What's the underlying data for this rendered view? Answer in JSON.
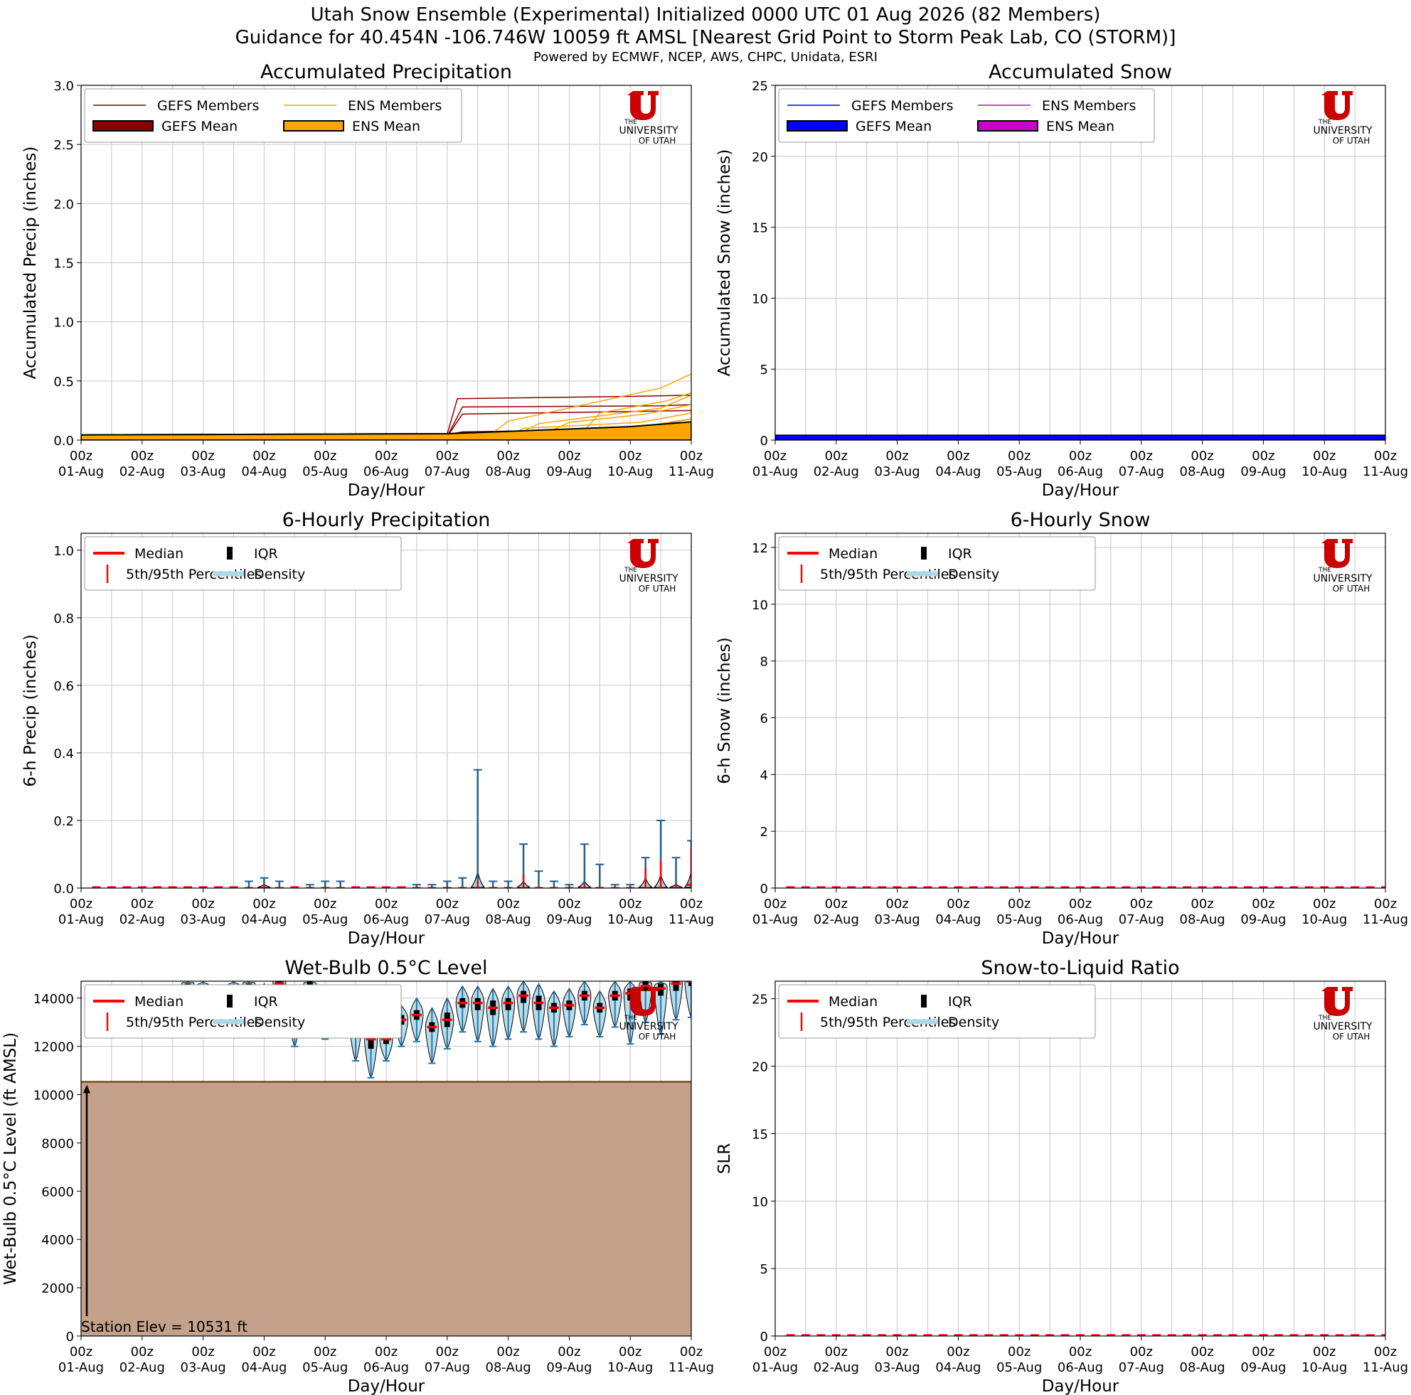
{
  "figure": {
    "title_line1": "Utah Snow Ensemble (Experimental) Initialized 0000 UTC 01 Aug 2026 (82 Members)",
    "title_line2": "Guidance for 40.454N -106.746W 10059 ft AMSL [Nearest Grid Point to Storm Peak Lab, CO (STORM)]",
    "credits": "Powered by ECMWF, NCEP, AWS, CHPC, Unidata, ESRI"
  },
  "logo": {
    "line1": "THE",
    "line2": "UNIVERSITY",
    "line3": "OF UTAH",
    "color": "#cc0000"
  },
  "colors": {
    "gefs_member": "#8b0000",
    "gefs_mean": "#8b0000",
    "ens_member": "#ffa500",
    "ens_mean": "#ffa500",
    "gefs_snow_member": "#0000ff",
    "gefs_snow_mean": "#0000ff",
    "ens_snow_member": "#cc00cc",
    "ens_snow_mean": "#cc00cc",
    "median": "#ff0000",
    "iqr": "#000000",
    "density": "#add8e6",
    "violin_edge": "#1f5f8f",
    "whisker": "#1f77b4",
    "terrain": "#c4a18a",
    "terrain_edge": "#7a4a1a"
  },
  "chart_data": [
    {
      "id": "accum-precip",
      "type": "line",
      "title": "Accumulated Precipitation",
      "xlabel": "Day/Hour",
      "ylabel": "Accumulated Precip (inches)",
      "ylim": [
        0,
        3.0
      ],
      "yticks": [
        "0.0",
        "0.5",
        "1.0",
        "1.5",
        "2.0",
        "2.5",
        "3.0"
      ],
      "xlim": [
        0,
        240
      ],
      "xtick_hour": "00z",
      "xtick_days": [
        "01-Aug",
        "02-Aug",
        "03-Aug",
        "04-Aug",
        "05-Aug",
        "06-Aug",
        "07-Aug",
        "08-Aug",
        "09-Aug",
        "10-Aug",
        "11-Aug"
      ],
      "grid": true,
      "legend_placement": "top-left",
      "legend_cols": 2,
      "legend": [
        "GEFS Members",
        "GEFS Mean",
        "ENS Members",
        "ENS Mean"
      ],
      "series": [
        {
          "group": "gefs_member",
          "x": [
            0,
            61,
            64,
            144,
            148,
            216,
            240
          ],
          "y": [
            0.02,
            0.02,
            0.04,
            0.05,
            0.35,
            0.37,
            0.38
          ]
        },
        {
          "group": "gefs_member",
          "x": [
            0,
            144,
            150,
            228,
            240
          ],
          "y": [
            0.02,
            0.03,
            0.28,
            0.29,
            0.3
          ]
        },
        {
          "group": "gefs_member",
          "x": [
            0,
            144,
            150,
            210,
            240
          ],
          "y": [
            0.02,
            0.03,
            0.22,
            0.24,
            0.25
          ]
        },
        {
          "group": "gefs_member",
          "x": [
            0,
            140,
            150,
            216,
            240
          ],
          "y": [
            0.02,
            0.03,
            0.07,
            0.09,
            0.18
          ]
        },
        {
          "group": "gefs_member",
          "x": [
            0,
            150,
            220,
            240
          ],
          "y": [
            0.02,
            0.04,
            0.07,
            0.15
          ]
        },
        {
          "group": "ens_member",
          "x": [
            0,
            160,
            168,
            228,
            240
          ],
          "y": [
            0.02,
            0.03,
            0.16,
            0.44,
            0.56
          ]
        },
        {
          "group": "ens_member",
          "x": [
            0,
            196,
            204,
            230,
            240
          ],
          "y": [
            0.02,
            0.03,
            0.23,
            0.33,
            0.4
          ]
        },
        {
          "group": "ens_member",
          "x": [
            0,
            170,
            180,
            228,
            240
          ],
          "y": [
            0.02,
            0.03,
            0.14,
            0.27,
            0.38
          ]
        },
        {
          "group": "ens_member",
          "x": [
            0,
            180,
            192,
            222,
            240
          ],
          "y": [
            0.02,
            0.03,
            0.15,
            0.22,
            0.3
          ]
        },
        {
          "group": "ens_member",
          "x": [
            0,
            168,
            174,
            220,
            240
          ],
          "y": [
            0.02,
            0.03,
            0.1,
            0.15,
            0.23
          ]
        },
        {
          "group": "ens_member",
          "x": [
            0,
            200,
            216,
            240
          ],
          "y": [
            0.02,
            0.03,
            0.1,
            0.18
          ]
        },
        {
          "group": "gefs_mean",
          "x": [
            0,
            144,
            168,
            216,
            240
          ],
          "y": [
            0.02,
            0.03,
            0.05,
            0.07,
            0.09
          ]
        },
        {
          "group": "ens_mean",
          "x": [
            0,
            144,
            168,
            216,
            240
          ],
          "y": [
            0.02,
            0.03,
            0.05,
            0.09,
            0.13
          ]
        }
      ]
    },
    {
      "id": "accum-snow",
      "type": "line",
      "title": "Accumulated Snow",
      "xlabel": "Day/Hour",
      "ylabel": "Accumulated Snow (inches)",
      "ylim": [
        0,
        25
      ],
      "yticks": [
        "0",
        "5",
        "10",
        "15",
        "20",
        "25"
      ],
      "xlim": [
        0,
        240
      ],
      "xtick_hour": "00z",
      "xtick_days": [
        "01-Aug",
        "02-Aug",
        "03-Aug",
        "04-Aug",
        "05-Aug",
        "06-Aug",
        "07-Aug",
        "08-Aug",
        "09-Aug",
        "10-Aug",
        "11-Aug"
      ],
      "grid": true,
      "legend_placement": "top-left",
      "legend_cols": 2,
      "legend": [
        "GEFS Members",
        "GEFS Mean",
        "ENS Members",
        "ENS Mean"
      ],
      "series": [
        {
          "group": "gefs_snow_mean",
          "x": [
            0,
            240
          ],
          "y": [
            0.1,
            0.1
          ]
        }
      ]
    },
    {
      "id": "precip-6h",
      "type": "violin",
      "title": "6-Hourly Precipitation",
      "xlabel": "Day/Hour",
      "ylabel": "6-h Precip (inches)",
      "ylim": [
        0,
        1.05
      ],
      "yticks": [
        "0.0",
        "0.2",
        "0.4",
        "0.6",
        "0.8",
        "1.0"
      ],
      "xlim": [
        0,
        240
      ],
      "xtick_hour": "00z",
      "xtick_days": [
        "01-Aug",
        "02-Aug",
        "03-Aug",
        "04-Aug",
        "05-Aug",
        "06-Aug",
        "07-Aug",
        "08-Aug",
        "09-Aug",
        "10-Aug",
        "11-Aug"
      ],
      "grid": true,
      "legend_placement": "top-left",
      "legend_cols": 2,
      "legend": [
        "Median",
        "5th/95th Percentiles",
        "IQR",
        "Density"
      ],
      "x": [
        66,
        72,
        78,
        90,
        96,
        102,
        132,
        138,
        144,
        150,
        156,
        162,
        168,
        174,
        180,
        186,
        192,
        198,
        204,
        210,
        216,
        222,
        228,
        234,
        240
      ],
      "max": [
        0.02,
        0.03,
        0.02,
        0.01,
        0.02,
        0.02,
        0.01,
        0.01,
        0.02,
        0.03,
        0.35,
        0.02,
        0.02,
        0.13,
        0.05,
        0.02,
        0.01,
        0.13,
        0.07,
        0.01,
        0.01,
        0.09,
        0.2,
        0.09,
        0.14
      ],
      "p95": [
        0.0,
        0.01,
        0.0,
        0.0,
        0.0,
        0.0,
        0.0,
        0.0,
        0.0,
        0.0,
        0.02,
        0.0,
        0.0,
        0.04,
        0.0,
        0.0,
        0.0,
        0.01,
        0.0,
        0.0,
        0.0,
        0.06,
        0.08,
        0.01,
        0.12
      ],
      "median": [
        0.0,
        0.0,
        0.0,
        0.0,
        0.0,
        0.0,
        0.0,
        0.0,
        0.0,
        0.0,
        0.0,
        0.0,
        0.0,
        0.0,
        0.0,
        0.0,
        0.0,
        0.0,
        0.0,
        0.0,
        0.0,
        0.0,
        0.0,
        0.0,
        0.01
      ],
      "bump": [
        0.0,
        0.01,
        0.0,
        0.0,
        0.0,
        0.0,
        0.0,
        0.0,
        0.0,
        0.0,
        0.05,
        0.0,
        0.0,
        0.02,
        0.0,
        0.0,
        0.0,
        0.02,
        0.0,
        0.0,
        0.0,
        0.03,
        0.04,
        0.01,
        0.05
      ],
      "baseline_x": [
        6,
        12,
        18,
        24,
        30,
        36,
        42,
        48,
        54,
        60,
        84,
        108,
        114,
        120,
        126
      ]
    },
    {
      "id": "snow-6h",
      "type": "violin",
      "title": "6-Hourly Snow",
      "xlabel": "Day/Hour",
      "ylabel": "6-h Snow (inches)",
      "ylim": [
        0,
        12.5
      ],
      "yticks": [
        "0",
        "2",
        "4",
        "6",
        "8",
        "10",
        "12"
      ],
      "xlim": [
        0,
        240
      ],
      "xtick_hour": "00z",
      "xtick_days": [
        "01-Aug",
        "02-Aug",
        "03-Aug",
        "04-Aug",
        "05-Aug",
        "06-Aug",
        "07-Aug",
        "08-Aug",
        "09-Aug",
        "10-Aug",
        "11-Aug"
      ],
      "grid": true,
      "legend_placement": "top-left",
      "legend_cols": 2,
      "legend": [
        "Median",
        "5th/95th Percentiles",
        "IQR",
        "Density"
      ],
      "baseline_every": 6
    },
    {
      "id": "wetbulb",
      "type": "violin",
      "title": "Wet-Bulb 0.5°C Level",
      "xlabel": "Day/Hour",
      "ylabel": "Wet-Bulb 0.5°C Level (ft AMSL)",
      "ylim": [
        0,
        14700
      ],
      "yticks": [
        "0",
        "2000",
        "4000",
        "6000",
        "8000",
        "10000",
        "12000",
        "14000"
      ],
      "xlim": [
        0,
        240
      ],
      "xtick_hour": "00z",
      "xtick_days": [
        "01-Aug",
        "02-Aug",
        "03-Aug",
        "04-Aug",
        "05-Aug",
        "06-Aug",
        "07-Aug",
        "08-Aug",
        "09-Aug",
        "10-Aug",
        "11-Aug"
      ],
      "grid": true,
      "legend_placement": "top-left",
      "legend_cols": 2,
      "legend": [
        "Median",
        "5th/95th Percentiles",
        "IQR",
        "Density"
      ],
      "station_elev_ft": 10531,
      "station_label": "Station Elev = 10531 ft",
      "x": [
        6,
        12,
        18,
        24,
        30,
        36,
        42,
        48,
        54,
        60,
        66,
        72,
        78,
        84,
        90,
        96,
        102,
        108,
        114,
        120,
        126,
        132,
        138,
        144,
        150,
        156,
        162,
        168,
        174,
        180,
        186,
        192,
        198,
        204,
        210,
        216,
        222,
        228,
        234,
        240
      ],
      "median": [
        13600,
        13700,
        14000,
        13900,
        14200,
        14000,
        14500,
        14400,
        14200,
        14400,
        14500,
        14300,
        14600,
        13500,
        14500,
        13000,
        13800,
        13000,
        12300,
        12300,
        13100,
        13300,
        12800,
        13100,
        13800,
        13800,
        13600,
        13800,
        14100,
        13800,
        13600,
        13700,
        14100,
        13600,
        14100,
        14200,
        14500,
        14400,
        14600,
        14700
      ],
      "q1": [
        13500,
        13600,
        13900,
        13800,
        14100,
        13900,
        14400,
        14300,
        14100,
        14300,
        14400,
        14200,
        14500,
        13300,
        14300,
        12800,
        13600,
        12800,
        11900,
        12100,
        12900,
        13100,
        12600,
        12800,
        13600,
        13500,
        13300,
        13500,
        13800,
        13500,
        13400,
        13500,
        13900,
        13400,
        13900,
        13900,
        14300,
        14100,
        14300,
        14500
      ],
      "q3": [
        13700,
        13800,
        14100,
        14000,
        14300,
        14100,
        14600,
        14500,
        14300,
        14500,
        14600,
        14400,
        14700,
        13700,
        14700,
        13200,
        14000,
        13200,
        12600,
        12500,
        13300,
        13500,
        13000,
        13400,
        14000,
        14000,
        13900,
        14000,
        14300,
        14100,
        13800,
        13900,
        14300,
        13800,
        14300,
        14400,
        14700,
        14600,
        14700,
        14700
      ],
      "p05": [
        13300,
        13300,
        13500,
        13400,
        13700,
        13500,
        14000,
        14000,
        13800,
        14000,
        14000,
        13900,
        14100,
        12000,
        13800,
        12300,
        13200,
        11400,
        10700,
        11400,
        12000,
        12200,
        11300,
        11900,
        12600,
        12200,
        12000,
        12300,
        12600,
        12300,
        12000,
        12400,
        12900,
        12400,
        12800,
        12100,
        13000,
        12500,
        13100,
        13200
      ],
      "p95": [
        13900,
        14000,
        14300,
        14200,
        14500,
        14300,
        14700,
        14700,
        14500,
        14700,
        14700,
        14600,
        14700,
        14100,
        14700,
        13700,
        14400,
        13700,
        13200,
        13000,
        13700,
        14000,
        13600,
        14000,
        14500,
        14500,
        14400,
        14500,
        14700,
        14600,
        14300,
        14400,
        14700,
        14300,
        14700,
        14700,
        14700,
        14700,
        14700,
        14700
      ]
    },
    {
      "id": "slr",
      "type": "violin",
      "title": "Snow-to-Liquid Ratio",
      "xlabel": "Day/Hour",
      "ylabel": "SLR",
      "ylim": [
        0,
        26.3
      ],
      "yticks": [
        "0",
        "5",
        "10",
        "15",
        "20",
        "25"
      ],
      "xlim": [
        0,
        240
      ],
      "xtick_hour": "00z",
      "xtick_days": [
        "01-Aug",
        "02-Aug",
        "03-Aug",
        "04-Aug",
        "05-Aug",
        "06-Aug",
        "07-Aug",
        "08-Aug",
        "09-Aug",
        "10-Aug",
        "11-Aug"
      ],
      "grid": true,
      "legend_placement": "top-left",
      "legend_cols": 2,
      "legend": [
        "Median",
        "5th/95th Percentiles",
        "IQR",
        "Density"
      ],
      "baseline_every": 6
    }
  ]
}
